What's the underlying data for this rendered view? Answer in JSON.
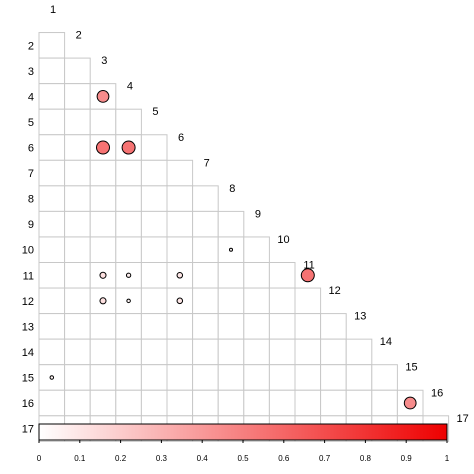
{
  "chart_data": {
    "type": "heatmap",
    "title": "",
    "xlabel": "",
    "ylabel": "",
    "variables": [
      "1",
      "2",
      "3",
      "4",
      "5",
      "6",
      "7",
      "8",
      "9",
      "10",
      "11",
      "12",
      "13",
      "14",
      "15",
      "16",
      "17"
    ],
    "shape": "lower-triangle correlation matrix with circles sized and colored by value",
    "points": [
      {
        "row": "4",
        "col": "3",
        "value": 0.45
      },
      {
        "row": "6",
        "col": "3",
        "value": 0.55
      },
      {
        "row": "6",
        "col": "4",
        "value": 0.55
      },
      {
        "row": "10",
        "col": "8",
        "value": 0.03
      },
      {
        "row": "11",
        "col": "3",
        "value": 0.12
      },
      {
        "row": "11",
        "col": "4",
        "value": 0.06
      },
      {
        "row": "11",
        "col": "6",
        "value": 0.1
      },
      {
        "row": "11",
        "col": "11",
        "value": 0.55
      },
      {
        "row": "12",
        "col": "3",
        "value": 0.12
      },
      {
        "row": "12",
        "col": "4",
        "value": 0.04
      },
      {
        "row": "12",
        "col": "6",
        "value": 0.1
      },
      {
        "row": "15",
        "col": "1",
        "value": 0.04
      },
      {
        "row": "16",
        "col": "15",
        "value": 0.45
      }
    ],
    "colorbar": {
      "ticks": [
        "0",
        "0.1",
        "0.2",
        "0.3",
        "0.4",
        "0.5",
        "0.6",
        "0.7",
        "0.8",
        "0.9",
        "1"
      ],
      "range": [
        0,
        1
      ],
      "color_low": "#ffffff",
      "color_high": "#ee0000"
    },
    "colors": {
      "grid": "#c8c8c8",
      "dot_stroke": "#000000"
    }
  }
}
